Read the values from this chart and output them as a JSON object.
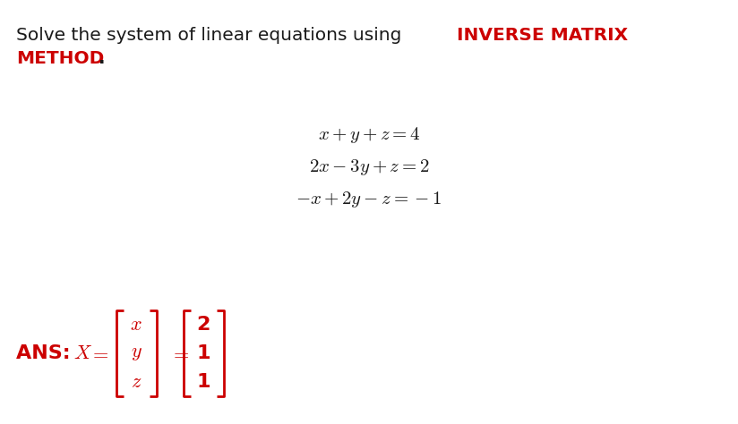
{
  "bg_color": "#ffffff",
  "red_color": "#cc0000",
  "black_color": "#1a1a1a",
  "title_fontsize": 14.5,
  "eq_fontsize": 15,
  "ans_fontsize": 15,
  "matrix_vars": [
    "x",
    "y",
    "z"
  ],
  "matrix_vals": [
    "2",
    "1",
    "1"
  ]
}
